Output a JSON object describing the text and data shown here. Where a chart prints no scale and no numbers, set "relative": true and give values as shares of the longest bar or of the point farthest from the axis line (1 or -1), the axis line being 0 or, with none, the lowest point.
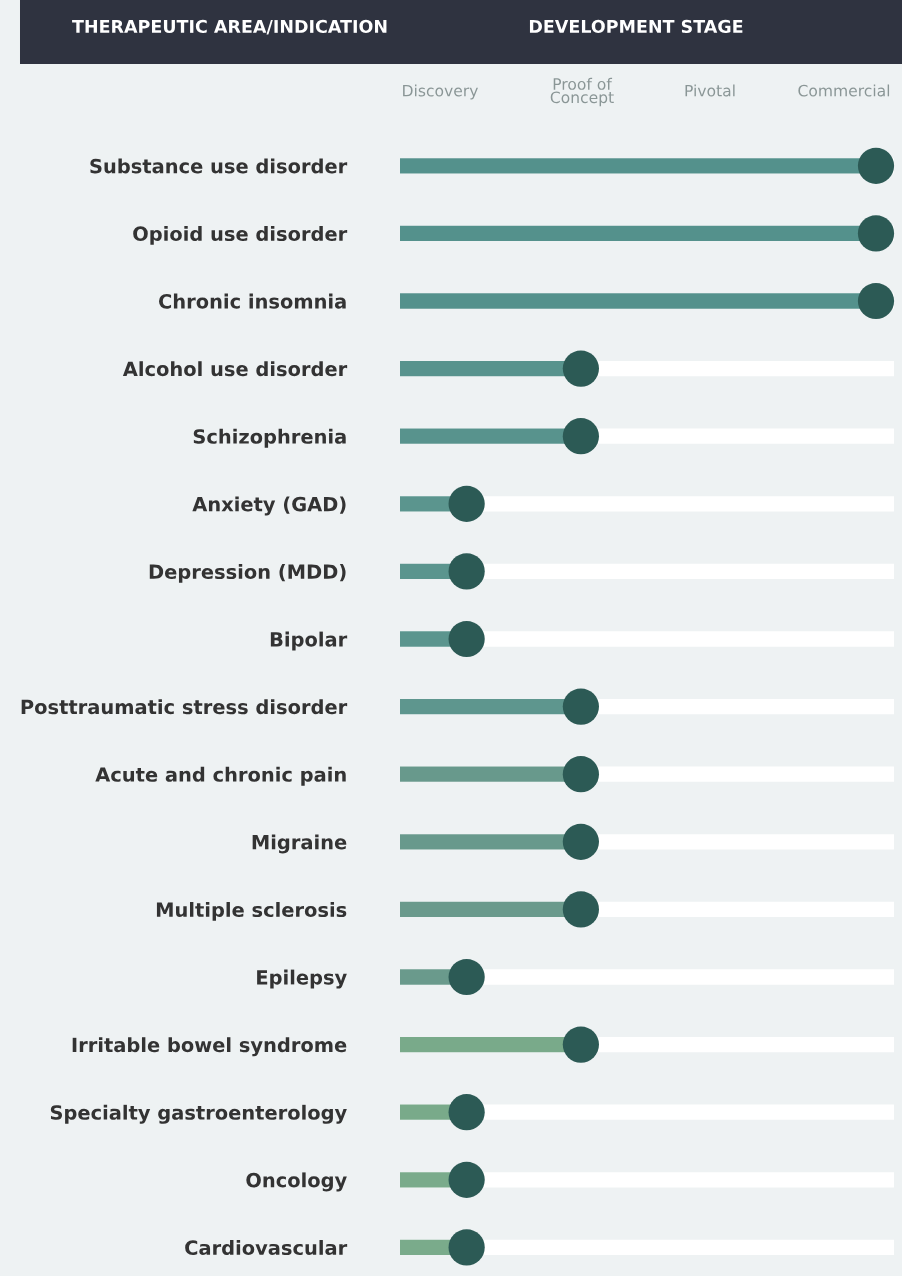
{
  "chart_data": {
    "type": "lollipop",
    "orientation": "horizontal",
    "relative": true,
    "title": "THERAPEUTIC AREA/INDICATION",
    "grid": "y",
    "categories": [
      "Substance use disorder",
      "Opioid use disorder",
      "Chronic insomnia",
      "Alcohol use disorder",
      "Schizophrenia",
      "Anxiety (GAD)",
      "Depression (MDD)",
      "Bipolar",
      "Posttraumatic stress disorder",
      "Acute and chronic pain",
      "Migraine",
      "Multiple sclerosis",
      "Epilepsy",
      "Irritable bowel syndrome",
      "Specialty gastroenterology",
      "Oncology",
      "Cardiovascular"
    ],
    "series": [
      {
        "color": "#2c5a55",
        "values": [
          1,
          1,
          1,
          0.38,
          0.38,
          0.14,
          0.14,
          0.14,
          0.38,
          0.38,
          0.38,
          0.38,
          0.14,
          0.38,
          0.14,
          0.14,
          0.14
        ]
      }
    ],
    "colors": [
      "#54918c",
      "#54918c",
      "#54918c",
      "#58938d",
      "#58938d",
      "#5b958e",
      "#5b958e",
      "#5b958e",
      "#5e968e",
      "#68998c",
      "#68998c",
      "#6a9a8c",
      "#6a9a8c",
      "#79aa8a",
      "#79aa8a",
      "#7aab8b",
      "#7aab8b"
    ],
    "annotations": [
      "DEVELOPMENT STAGE",
      "Discovery",
      "Proof of\nConcept",
      "Pivotal",
      "Commercial"
    ],
    "marker": "circle"
  }
}
